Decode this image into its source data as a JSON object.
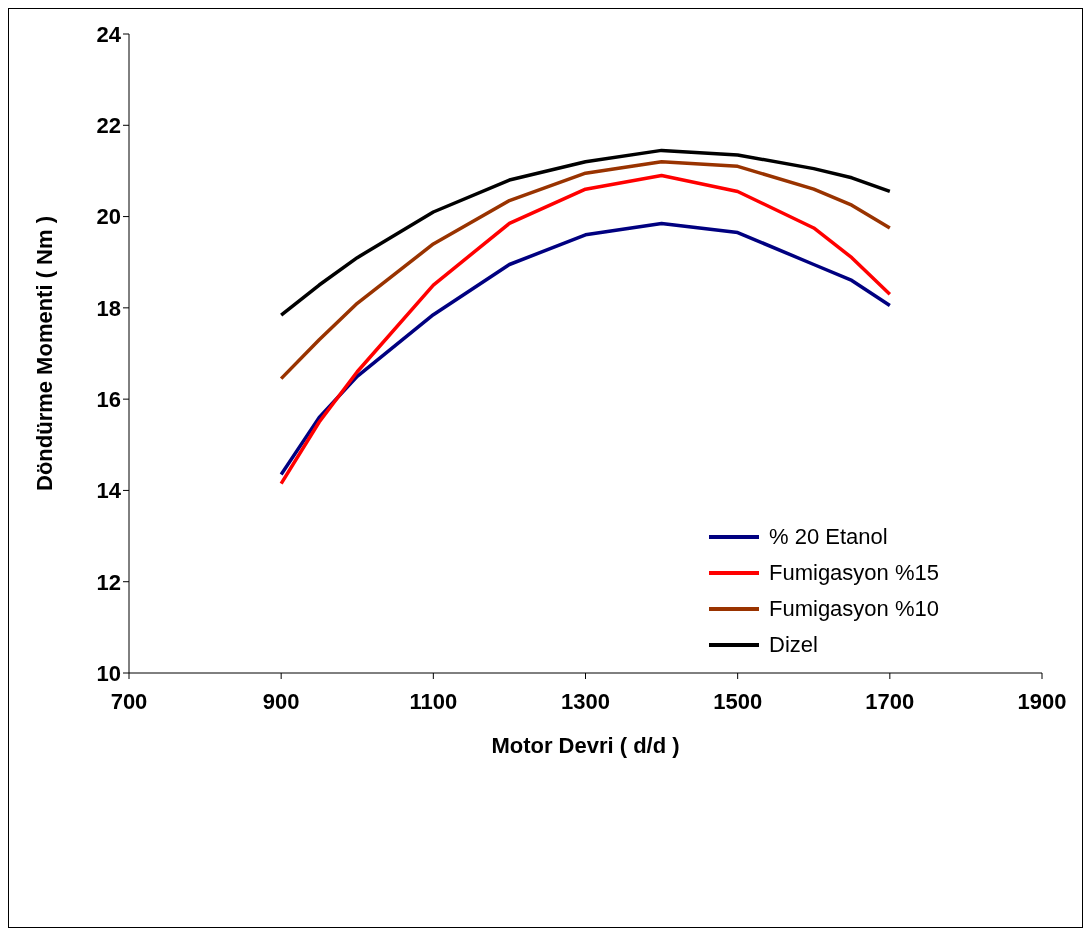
{
  "chart_data": {
    "type": "line",
    "xlabel": "Motor Devri ( d/d )",
    "ylabel": "Döndürme Momenti ( Nm )",
    "xlim": [
      700,
      1900
    ],
    "xticks": [
      700,
      900,
      1100,
      1300,
      1500,
      1700,
      1900
    ],
    "ylim": [
      10,
      24
    ],
    "yticks": [
      10,
      12,
      14,
      16,
      18,
      20,
      22,
      24
    ],
    "grid": false,
    "legend": "right",
    "marker": "none",
    "line_style": "solid",
    "x": [
      900,
      950,
      1000,
      1100,
      1200,
      1300,
      1400,
      1500,
      1600,
      1650,
      1700
    ],
    "series": [
      {
        "name": "% 20 Etanol",
        "color": "#000080",
        "values": [
          14.35,
          15.6,
          16.5,
          17.85,
          18.95,
          19.6,
          19.85,
          19.65,
          18.95,
          18.6,
          18.05
        ]
      },
      {
        "name": "Fumigasyon %15",
        "color": "#ff0000",
        "values": [
          14.15,
          15.5,
          16.6,
          18.5,
          19.85,
          20.6,
          20.9,
          20.55,
          19.75,
          19.1,
          18.3
        ]
      },
      {
        "name": "Fumigasyon %10",
        "color": "#993300",
        "values": [
          16.45,
          17.3,
          18.1,
          19.4,
          20.35,
          20.95,
          21.2,
          21.1,
          20.6,
          20.25,
          19.75
        ]
      },
      {
        "name": "Dizel",
        "color": "#000000",
        "values": [
          17.84,
          18.5,
          19.1,
          20.1,
          20.8,
          21.2,
          21.45,
          21.35,
          21.05,
          20.85,
          20.55
        ]
      }
    ]
  }
}
